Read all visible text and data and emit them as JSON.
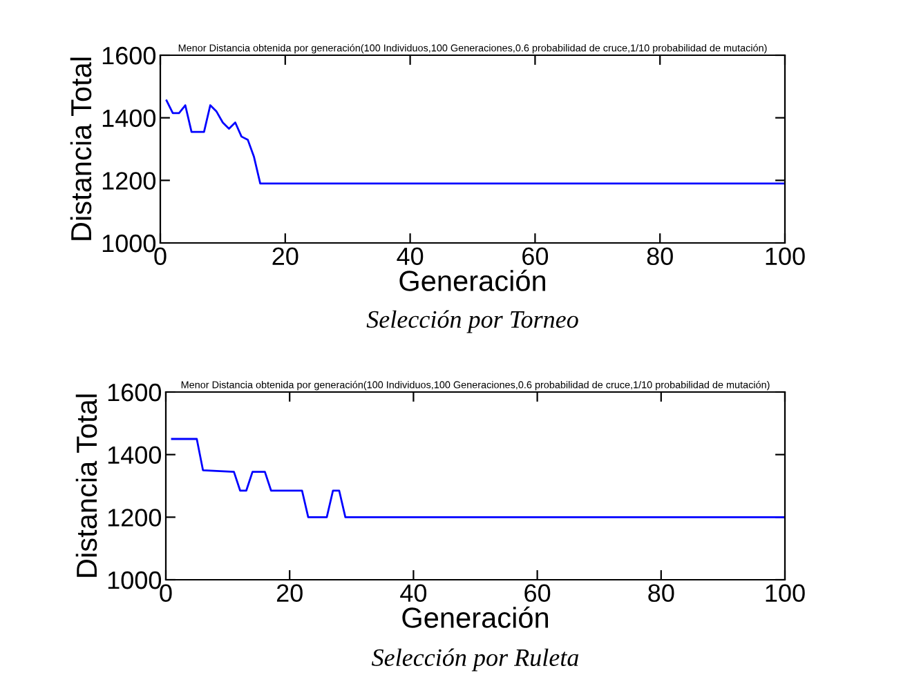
{
  "chart_data": [
    {
      "type": "line",
      "title": "Menor Distancia obtenida por generación(100 Individuos,100 Generaciones,0.6 probabilidad de cruce,1/10 probabilidad de mutación)",
      "xlabel": "Generación",
      "ylabel": "Distancia Total",
      "annotations": [
        "Selección por Torneo"
      ],
      "x": [
        1,
        2,
        3,
        4,
        5,
        6,
        7,
        8,
        9,
        10,
        11,
        12,
        13,
        14,
        15,
        16,
        100
      ],
      "series": [
        {
          "color": "#0000ff",
          "values": [
            1455,
            1415,
            1415,
            1440,
            1355,
            1355,
            1355,
            1440,
            1420,
            1385,
            1365,
            1385,
            1340,
            1330,
            1275,
            1190,
            1190
          ]
        }
      ],
      "xlim": [
        0,
        100
      ],
      "xticks": [
        0,
        20,
        40,
        60,
        80,
        100
      ],
      "ylim": [
        1000,
        1600
      ],
      "yticks": [
        1000,
        1200,
        1400,
        1600
      ],
      "grid": false,
      "legend": false
    },
    {
      "type": "line",
      "title": "Menor Distancia obtenida por generación(100 Individuos,100 Generaciones,0.6 probabilidad de cruce,1/10 probabilidad de mutación)",
      "xlabel": "Generación",
      "ylabel": "Distancia Total",
      "annotations": [
        "Selección por Ruleta"
      ],
      "x": [
        1,
        5,
        6,
        11,
        12,
        13,
        14,
        16,
        17,
        22,
        23,
        26,
        27,
        28,
        29,
        100
      ],
      "series": [
        {
          "color": "#0000ff",
          "values": [
            1450,
            1450,
            1350,
            1345,
            1285,
            1285,
            1345,
            1345,
            1285,
            1285,
            1200,
            1200,
            1285,
            1285,
            1200,
            1200
          ]
        }
      ],
      "xlim": [
        0,
        100
      ],
      "xticks": [
        0,
        20,
        40,
        60,
        80,
        100
      ],
      "ylim": [
        1000,
        1600
      ],
      "yticks": [
        1000,
        1200,
        1400,
        1600
      ],
      "grid": false,
      "legend": false
    }
  ]
}
